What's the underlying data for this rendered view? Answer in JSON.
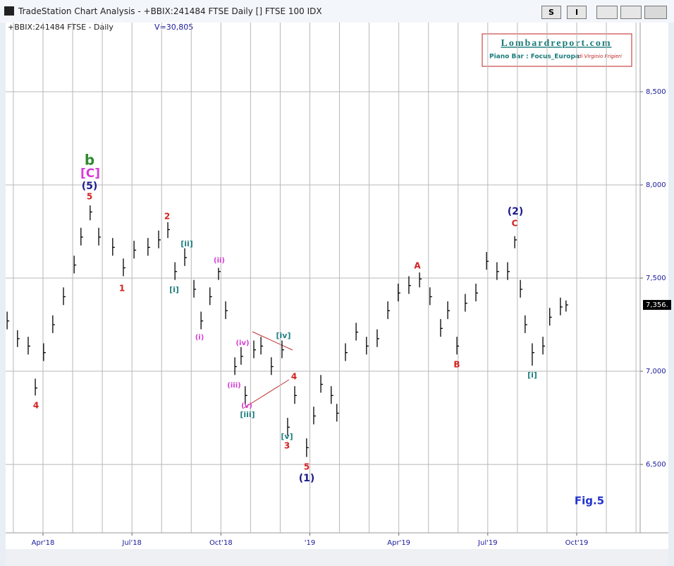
{
  "window": {
    "title": "TradeStation Chart Analysis - +BBIX:241484 FTSE Daily [] FTSE 100 IDX",
    "buttons": [
      "S",
      "I"
    ]
  },
  "chart_data": {
    "type": "ohlc",
    "symbol_label": "+BBIX:241484 FTSE - Daily",
    "volume_label": "V=30,805",
    "logo": {
      "title": "Lombardreport.com",
      "subtitle": "Piano Bar : Focus_Europa",
      "author": "di Virginio Frigieri"
    },
    "color": "#000000",
    "x": [
      -0.21,
      0.14,
      0.5,
      0.74,
      1.02,
      1.33,
      1.69,
      2.05,
      2.28,
      2.59,
      2.88,
      3.35,
      3.71,
      4.07,
      4.54,
      4.9,
      5.21,
      5.45,
      5.78,
      6.09,
      6.33,
      6.63,
      6.92,
      7.16,
      7.47,
      7.68,
      7.82,
      8.11,
      8.35,
      8.7,
      9.06,
      9.25,
      9.49,
      9.89,
      10.13,
      10.37,
      10.72,
      10.91,
      11.2,
      11.56,
      11.91,
      12.27,
      12.63,
      12.98,
      13.34,
      13.7,
      14.05,
      14.41,
      14.65,
      14.96,
      15.24,
      15.6,
      15.96,
      16.31,
      16.67,
      16.91,
      17.1,
      17.26,
      17.5,
      17.86,
      18.09,
      18.45,
      18.64
    ],
    "high": [
      7320,
      7220,
      7185,
      6960,
      7150,
      7300,
      7450,
      7620,
      7770,
      7890,
      7770,
      7715,
      7605,
      7700,
      7715,
      7755,
      7800,
      7585,
      7660,
      7490,
      7320,
      7450,
      7555,
      7375,
      7075,
      7130,
      6920,
      7165,
      7185,
      7075,
      7165,
      6750,
      6920,
      6640,
      6810,
      6980,
      6920,
      6825,
      7150,
      7260,
      7185,
      7225,
      7375,
      7470,
      7510,
      7530,
      7450,
      7280,
      7375,
      7185,
      7415,
      7470,
      7640,
      7585,
      7585,
      7725,
      7490,
      7300,
      7150,
      7185,
      7340,
      7395,
      7380
    ],
    "low": [
      7225,
      7130,
      7090,
      6870,
      7055,
      7205,
      7355,
      7525,
      7675,
      7810,
      7675,
      7620,
      7510,
      7605,
      7620,
      7660,
      7715,
      7490,
      7565,
      7395,
      7225,
      7355,
      7490,
      7280,
      6980,
      7035,
      6825,
      7070,
      7090,
      6980,
      7070,
      6655,
      6825,
      6540,
      6715,
      6885,
      6825,
      6730,
      7055,
      7165,
      7090,
      7130,
      7280,
      7375,
      7415,
      7450,
      7355,
      7185,
      7280,
      7090,
      7320,
      7375,
      7545,
      7490,
      7490,
      7660,
      7395,
      7205,
      7030,
      7090,
      7245,
      7300,
      7320
    ],
    "close": [
      7270,
      7175,
      7135,
      6910,
      7100,
      7250,
      7400,
      7570,
      7720,
      7855,
      7720,
      7665,
      7555,
      7650,
      7665,
      7705,
      7760,
      7535,
      7610,
      7440,
      7270,
      7400,
      7535,
      7325,
      7025,
      7080,
      6870,
      7115,
      7135,
      7025,
      7115,
      6700,
      6870,
      6590,
      6760,
      6930,
      6870,
      6775,
      7100,
      7210,
      7135,
      7175,
      7325,
      7420,
      7460,
      7495,
      7400,
      7230,
      7325,
      7135,
      7365,
      7420,
      7590,
      7535,
      7535,
      7705,
      7440,
      7250,
      7100,
      7135,
      7290,
      7345,
      7356
    ],
    "xlim": [
      -0.26,
      21.14
    ],
    "ylim": [
      6133,
      8871
    ],
    "yticks": [
      {
        "value": 6500,
        "label": "6,500"
      },
      {
        "value": 7000,
        "label": "7,000"
      },
      {
        "value": 7500,
        "label": "7,500"
      },
      {
        "value": 8000,
        "label": "8,000"
      },
      {
        "value": 8500,
        "label": "8,500"
      }
    ],
    "xticks": [
      {
        "value": 1,
        "label": "Apr'18"
      },
      {
        "value": 4,
        "label": "Jul'18"
      },
      {
        "value": 7,
        "label": "Oct'18"
      },
      {
        "value": 10,
        "label": "'19"
      },
      {
        "value": 13,
        "label": "Apr'19"
      },
      {
        "value": 16,
        "label": "Jul'19"
      },
      {
        "value": 19,
        "label": "Oct'19"
      }
    ],
    "x_gridlines": [
      0,
      1,
      2,
      3,
      4,
      5,
      6,
      7,
      8,
      9,
      10,
      11,
      12,
      13,
      14,
      15,
      16,
      17,
      18,
      19,
      20,
      21
    ],
    "grid": true,
    "last_price": {
      "value": 7356,
      "label": "7,356."
    },
    "annotations": [
      {
        "text": "b",
        "color": "#2e8b2e"
      },
      {
        "text": "[C]",
        "color": "#d63bd6"
      },
      {
        "text": "(5)",
        "color": "#1a1a8c"
      },
      {
        "text": "5",
        "color": "#d42020"
      },
      {
        "text": "4",
        "color": "#d42020"
      },
      {
        "text": "1",
        "color": "#d42020"
      },
      {
        "text": "2",
        "color": "#d42020"
      },
      {
        "text": "[ii]",
        "color": "#208080"
      },
      {
        "text": "[i]",
        "color": "#208080"
      },
      {
        "text": "(ii)",
        "color": "#d63bd6"
      },
      {
        "text": "(i)",
        "color": "#d63bd6"
      },
      {
        "text": "(iv)",
        "color": "#d63bd6"
      },
      {
        "text": "(iii)",
        "color": "#d63bd6"
      },
      {
        "text": "(v)",
        "color": "#d63bd6"
      },
      {
        "text": "[iii]",
        "color": "#208080"
      },
      {
        "text": "[iv]",
        "color": "#208080"
      },
      {
        "text": "4",
        "color": "#d42020"
      },
      {
        "text": "[v]",
        "color": "#208080"
      },
      {
        "text": "3",
        "color": "#d42020"
      },
      {
        "text": "5",
        "color": "#d42020"
      },
      {
        "text": "(1)",
        "color": "#1a1a8c"
      },
      {
        "text": "A",
        "color": "#d42020"
      },
      {
        "text": "B",
        "color": "#d42020"
      },
      {
        "text": "(2)",
        "color": "#1a1a8c"
      },
      {
        "text": "C",
        "color": "#d42020"
      },
      {
        "text": "[i]",
        "color": "#208080"
      },
      {
        "text": "Fig.5",
        "color": "#2233cc"
      }
    ]
  }
}
